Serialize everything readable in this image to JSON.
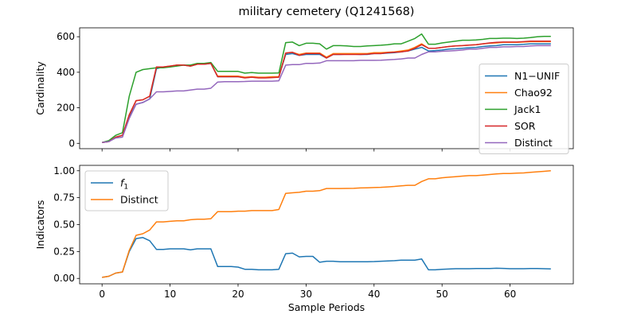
{
  "figure": {
    "title": "military cemetery (Q1241568)"
  },
  "chart_data": [
    {
      "type": "line",
      "ylabel": "Cardinality",
      "xlim": [
        -3.3,
        69.3
      ],
      "ylim": [
        -30,
        650
      ],
      "yticks": [
        0,
        200,
        400,
        600
      ],
      "xticks": [
        0,
        10,
        20,
        30,
        40,
        50,
        60
      ],
      "show_xtick_labels": false,
      "legend_position": "center-right",
      "series": [
        {
          "name": "N1−UNIF",
          "color": "#1f77b4",
          "values": [
            5,
            10,
            35,
            45,
            150,
            220,
            230,
            250,
            420,
            430,
            430,
            440,
            440,
            435,
            445,
            445,
            450,
            375,
            375,
            375,
            375,
            370,
            372,
            370,
            370,
            372,
            373,
            500,
            505,
            495,
            500,
            500,
            500,
            480,
            500,
            500,
            502,
            502,
            500,
            500,
            505,
            505,
            508,
            510,
            515,
            520,
            530,
            540,
            520,
            522,
            525,
            530,
            532,
            535,
            538,
            540,
            545,
            548,
            550,
            555,
            555,
            555,
            557,
            560,
            560,
            560,
            560
          ]
        },
        {
          "name": "Chao92",
          "color": "#ff7f0e",
          "values": [
            5,
            10,
            35,
            45,
            160,
            240,
            245,
            265,
            430,
            430,
            435,
            440,
            440,
            435,
            445,
            450,
            450,
            378,
            378,
            378,
            378,
            372,
            375,
            372,
            372,
            375,
            375,
            508,
            512,
            500,
            508,
            508,
            508,
            485,
            505,
            505,
            505,
            505,
            505,
            505,
            510,
            510,
            512,
            515,
            520,
            525,
            540,
            560,
            535,
            535,
            540,
            545,
            548,
            550,
            553,
            555,
            560,
            563,
            565,
            568,
            568,
            568,
            570,
            572,
            572,
            572,
            572
          ]
        },
        {
          "name": "Jack1",
          "color": "#2ca02c",
          "values": [
            5,
            15,
            45,
            60,
            265,
            400,
            415,
            420,
            425,
            425,
            430,
            435,
            440,
            440,
            450,
            450,
            455,
            405,
            405,
            405,
            405,
            395,
            398,
            395,
            395,
            395,
            396,
            567,
            570,
            550,
            563,
            563,
            560,
            530,
            550,
            550,
            548,
            545,
            545,
            548,
            550,
            552,
            555,
            560,
            560,
            575,
            590,
            615,
            558,
            558,
            565,
            570,
            575,
            580,
            580,
            582,
            585,
            590,
            590,
            592,
            592,
            590,
            592,
            595,
            600,
            602,
            602
          ]
        },
        {
          "name": "SOR",
          "color": "#d62728",
          "values": [
            5,
            10,
            35,
            45,
            160,
            240,
            245,
            265,
            430,
            430,
            435,
            440,
            440,
            435,
            445,
            445,
            450,
            375,
            375,
            375,
            375,
            368,
            372,
            368,
            368,
            370,
            372,
            508,
            512,
            495,
            505,
            505,
            505,
            480,
            500,
            500,
            500,
            500,
            500,
            502,
            505,
            505,
            510,
            512,
            515,
            520,
            535,
            555,
            535,
            535,
            540,
            545,
            548,
            550,
            553,
            555,
            560,
            565,
            568,
            570,
            570,
            570,
            572,
            575,
            575,
            575,
            575
          ]
        },
        {
          "name": "Distinct",
          "color": "#9467bd",
          "values": [
            5,
            10,
            30,
            35,
            140,
            220,
            230,
            250,
            290,
            290,
            292,
            295,
            295,
            300,
            305,
            305,
            310,
            345,
            347,
            347,
            347,
            348,
            350,
            350,
            350,
            350,
            352,
            440,
            443,
            443,
            450,
            450,
            452,
            465,
            465,
            465,
            465,
            465,
            467,
            467,
            467,
            468,
            470,
            472,
            475,
            480,
            480,
            500,
            515,
            515,
            518,
            520,
            522,
            525,
            530,
            530,
            535,
            540,
            540,
            543,
            543,
            545,
            545,
            548,
            550,
            550,
            550
          ]
        }
      ]
    },
    {
      "type": "line",
      "ylabel": "Indicators",
      "xlabel": "Sample Periods",
      "xlim": [
        -3.3,
        69.3
      ],
      "ylim": [
        -0.05,
        1.05
      ],
      "yticks": [
        0.0,
        0.25,
        0.5,
        0.75,
        1.0
      ],
      "ytick_labels": [
        "0.00",
        "0.25",
        "0.50",
        "0.75",
        "1.00"
      ],
      "xticks": [
        0,
        10,
        20,
        30,
        40,
        50,
        60
      ],
      "legend_position": "top-left",
      "series": [
        {
          "name": "f",
          "name_subscript": "1",
          "color": "#1f77b4",
          "values": [
            0.01,
            0.02,
            0.05,
            0.06,
            0.25,
            0.37,
            0.38,
            0.35,
            0.27,
            0.27,
            0.275,
            0.275,
            0.275,
            0.265,
            0.275,
            0.275,
            0.275,
            0.11,
            0.11,
            0.11,
            0.105,
            0.085,
            0.085,
            0.08,
            0.08,
            0.08,
            0.085,
            0.23,
            0.235,
            0.2,
            0.205,
            0.205,
            0.15,
            0.16,
            0.16,
            0.155,
            0.155,
            0.155,
            0.155,
            0.155,
            0.157,
            0.16,
            0.162,
            0.165,
            0.17,
            0.17,
            0.17,
            0.18,
            0.08,
            0.08,
            0.085,
            0.087,
            0.09,
            0.09,
            0.09,
            0.092,
            0.092,
            0.092,
            0.095,
            0.093,
            0.09,
            0.09,
            0.09,
            0.092,
            0.092,
            0.09,
            0.088
          ]
        },
        {
          "name": "Distinct",
          "color": "#ff7f0e",
          "values": [
            0.01,
            0.02,
            0.05,
            0.06,
            0.26,
            0.4,
            0.415,
            0.45,
            0.525,
            0.525,
            0.53,
            0.535,
            0.535,
            0.545,
            0.55,
            0.55,
            0.555,
            0.62,
            0.62,
            0.62,
            0.625,
            0.625,
            0.63,
            0.63,
            0.63,
            0.63,
            0.64,
            0.79,
            0.795,
            0.8,
            0.81,
            0.81,
            0.815,
            0.835,
            0.835,
            0.835,
            0.836,
            0.837,
            0.84,
            0.842,
            0.844,
            0.846,
            0.85,
            0.854,
            0.86,
            0.865,
            0.865,
            0.9,
            0.925,
            0.925,
            0.935,
            0.94,
            0.945,
            0.95,
            0.955,
            0.955,
            0.96,
            0.965,
            0.97,
            0.975,
            0.975,
            0.978,
            0.98,
            0.985,
            0.99,
            0.995,
            1.0
          ]
        }
      ]
    }
  ]
}
